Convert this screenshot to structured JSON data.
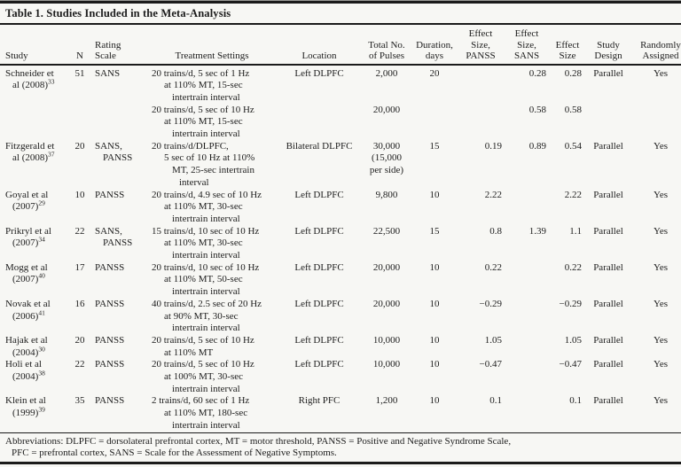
{
  "page": {
    "background": "#f7f7f4",
    "ink": "#1d1d1d",
    "rule_color": "#1b1b1b"
  },
  "title": "Table 1. Studies Included in the Meta-Analysis",
  "table": {
    "columns": [
      {
        "key": "study",
        "lines": [
          "Study"
        ]
      },
      {
        "key": "n",
        "lines": [
          "N"
        ]
      },
      {
        "key": "rating",
        "lines": [
          "Rating",
          "Scale"
        ]
      },
      {
        "key": "treatment",
        "lines": [
          "Treatment Settings"
        ]
      },
      {
        "key": "location",
        "lines": [
          "Location"
        ]
      },
      {
        "key": "pulses",
        "lines": [
          "Total No.",
          "of Pulses"
        ]
      },
      {
        "key": "duration",
        "lines": [
          "Duration,",
          "days"
        ]
      },
      {
        "key": "es_panss",
        "lines": [
          "Effect",
          "Size,",
          "PANSS"
        ]
      },
      {
        "key": "es_sans",
        "lines": [
          "Effect",
          "Size,",
          "SANS"
        ]
      },
      {
        "key": "es",
        "lines": [
          "Effect",
          "Size"
        ]
      },
      {
        "key": "design",
        "lines": [
          "Study",
          "Design"
        ]
      },
      {
        "key": "random",
        "lines": [
          "Randomly",
          "Assigned"
        ]
      }
    ],
    "rows": [
      {
        "study": {
          "lines": [
            "Schneider et",
            "al (2008)"
          ],
          "sup": "33"
        },
        "n": "51",
        "rating": [
          "SANS"
        ],
        "treatment": [
          "20 trains/d, 5 sec of 1 Hz",
          "at 110% MT, 15-sec",
          "intertrain interval"
        ],
        "location": "Left DLPFC",
        "pulses": [
          "2,000"
        ],
        "duration": "20",
        "es_panss": "",
        "es_sans": "0.28",
        "es": "0.28",
        "design": "Parallel",
        "random": "Yes"
      },
      {
        "study": {
          "lines": [],
          "sup": ""
        },
        "n": "",
        "rating": [],
        "treatment": [
          "20 trains/d, 5 sec of 10 Hz",
          "at 110% MT, 15-sec",
          "intertrain interval"
        ],
        "location": "",
        "pulses": [
          "20,000"
        ],
        "duration": "",
        "es_panss": "",
        "es_sans": "0.58",
        "es": "0.58",
        "design": "",
        "random": ""
      },
      {
        "study": {
          "lines": [
            "Fitzgerald et",
            "al (2008)"
          ],
          "sup": "37"
        },
        "n": "20",
        "rating": [
          "SANS,",
          "PANSS"
        ],
        "treatment": [
          "20 trains/d/DLPFC,",
          "5 sec of 10 Hz at 110%",
          "MT, 25-sec intertrain",
          "interval"
        ],
        "location": "Bilateral DLPFC",
        "pulses": [
          "30,000",
          "(15,000",
          "per side)"
        ],
        "duration": "15",
        "es_panss": "0.19",
        "es_sans": "0.89",
        "es": "0.54",
        "design": "Parallel",
        "random": "Yes"
      },
      {
        "study": {
          "lines": [
            "Goyal et al",
            "(2007)"
          ],
          "sup": "29"
        },
        "n": "10",
        "rating": [
          "PANSS"
        ],
        "treatment": [
          "20 trains/d, 4.9 sec of 10 Hz",
          "at 110% MT, 30-sec",
          "intertrain interval"
        ],
        "location": "Left DLPFC",
        "pulses": [
          "9,800"
        ],
        "duration": "10",
        "es_panss": "2.22",
        "es_sans": "",
        "es": "2.22",
        "design": "Parallel",
        "random": "Yes"
      },
      {
        "study": {
          "lines": [
            "Prikryl et al",
            "(2007)"
          ],
          "sup": "34"
        },
        "n": "22",
        "rating": [
          "SANS,",
          "PANSS"
        ],
        "treatment": [
          "15 trains/d, 10 sec of 10 Hz",
          "at 110% MT, 30-sec",
          "intertrain interval"
        ],
        "location": "Left DLPFC",
        "pulses": [
          "22,500"
        ],
        "duration": "15",
        "es_panss": "0.8",
        "es_sans": "1.39",
        "es": "1.1",
        "design": "Parallel",
        "random": "Yes"
      },
      {
        "study": {
          "lines": [
            "Mogg et al",
            "(2007)"
          ],
          "sup": "40"
        },
        "n": "17",
        "rating": [
          "PANSS"
        ],
        "treatment": [
          "20 trains/d, 10 sec of 10 Hz",
          "at 110% MT, 50-sec",
          "intertrain interval"
        ],
        "location": "Left DLPFC",
        "pulses": [
          "20,000"
        ],
        "duration": "10",
        "es_panss": "0.22",
        "es_sans": "",
        "es": "0.22",
        "design": "Parallel",
        "random": "Yes"
      },
      {
        "study": {
          "lines": [
            "Novak et al",
            "(2006)"
          ],
          "sup": "41"
        },
        "n": "16",
        "rating": [
          "PANSS"
        ],
        "treatment": [
          "40 trains/d, 2.5 sec of 20 Hz",
          "at 90% MT, 30-sec",
          "intertrain interval"
        ],
        "location": "Left DLPFC",
        "pulses": [
          "20,000"
        ],
        "duration": "10",
        "es_panss": "−0.29",
        "es_sans": "",
        "es": "−0.29",
        "design": "Parallel",
        "random": "Yes"
      },
      {
        "study": {
          "lines": [
            "Hajak et al",
            "(2004)"
          ],
          "sup": "30"
        },
        "n": "20",
        "rating": [
          "PANSS"
        ],
        "treatment": [
          "20 trains/d, 5 sec of 10 Hz",
          "at 110% MT"
        ],
        "location": "Left DLPFC",
        "pulses": [
          "10,000"
        ],
        "duration": "10",
        "es_panss": "1.05",
        "es_sans": "",
        "es": "1.05",
        "design": "Parallel",
        "random": "Yes"
      },
      {
        "study": {
          "lines": [
            "Holi et al",
            "(2004)"
          ],
          "sup": "38"
        },
        "n": "22",
        "rating": [
          "PANSS"
        ],
        "treatment": [
          "20 trains/d, 5 sec of 10 Hz",
          "at 100% MT, 30-sec",
          "intertrain interval"
        ],
        "location": "Left DLPFC",
        "pulses": [
          "10,000"
        ],
        "duration": "10",
        "es_panss": "−0.47",
        "es_sans": "",
        "es": "−0.47",
        "design": "Parallel",
        "random": "Yes"
      },
      {
        "study": {
          "lines": [
            "Klein et al",
            "(1999)"
          ],
          "sup": "39"
        },
        "n": "35",
        "rating": [
          "PANSS"
        ],
        "treatment": [
          "2 trains/d, 60 sec of 1 Hz",
          "at 110% MT, 180-sec",
          "intertrain interval"
        ],
        "location": "Right PFC",
        "pulses": [
          "1,200"
        ],
        "duration": "10",
        "es_panss": "0.1",
        "es_sans": "",
        "es": "0.1",
        "design": "Parallel",
        "random": "Yes"
      }
    ]
  },
  "footnote": {
    "line1": "Abbreviations: DLPFC = dorsolateral prefrontal cortex, MT = motor threshold, PANSS = Positive and Negative Syndrome Scale,",
    "line2": "PFC = prefrontal cortex, SANS = Scale for the Assessment of Negative Symptoms."
  }
}
